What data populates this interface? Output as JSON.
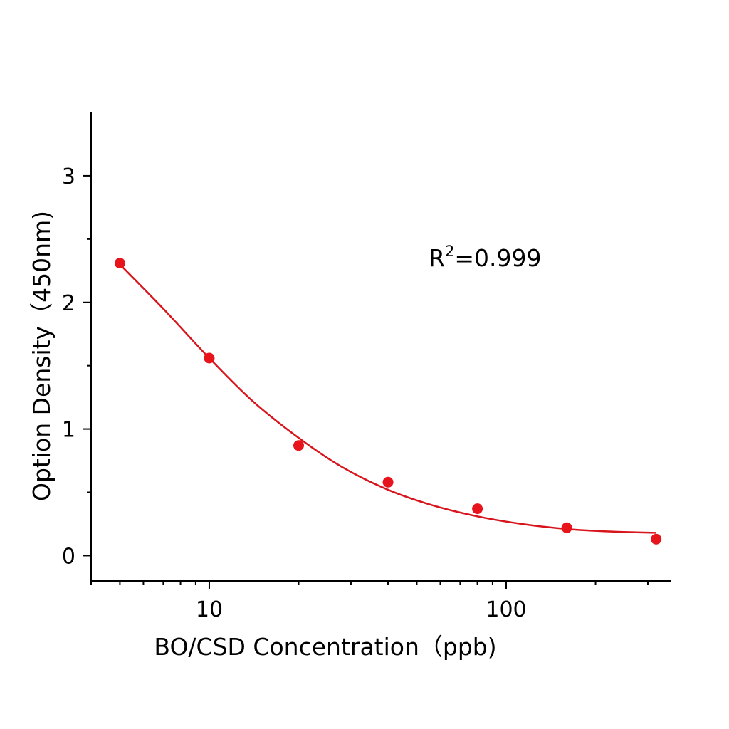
{
  "chart_data": {
    "type": "scatter",
    "title": "",
    "xlabel": "BO/CSD Concentration（ppb)",
    "ylabel": "Option Density（450nm)",
    "x_scale": "log",
    "xlim": [
      4,
      360
    ],
    "ylim": [
      -0.2,
      3.5
    ],
    "x_ticks": [
      10,
      100
    ],
    "x_tick_labels": [
      "10",
      "100"
    ],
    "y_ticks": [
      0,
      1,
      2,
      3
    ],
    "y_tick_labels": [
      "0",
      "1",
      "2",
      "3"
    ],
    "grid": false,
    "annotation": {
      "base": "R",
      "sup": "2",
      "rest": "=0.999"
    },
    "color": "#e8141c",
    "points": [
      {
        "x": 5,
        "y": 2.31
      },
      {
        "x": 10,
        "y": 1.56
      },
      {
        "x": 20,
        "y": 0.87
      },
      {
        "x": 40,
        "y": 0.58
      },
      {
        "x": 80,
        "y": 0.37
      },
      {
        "x": 160,
        "y": 0.22
      },
      {
        "x": 320,
        "y": 0.13
      }
    ],
    "fit_curve": {
      "x": [
        5,
        7,
        10,
        14,
        20,
        28,
        40,
        56,
        80,
        113,
        160,
        226,
        320
      ],
      "y": [
        2.3,
        1.95,
        1.56,
        1.22,
        0.93,
        0.7,
        0.52,
        0.4,
        0.31,
        0.25,
        0.21,
        0.19,
        0.18
      ]
    }
  }
}
